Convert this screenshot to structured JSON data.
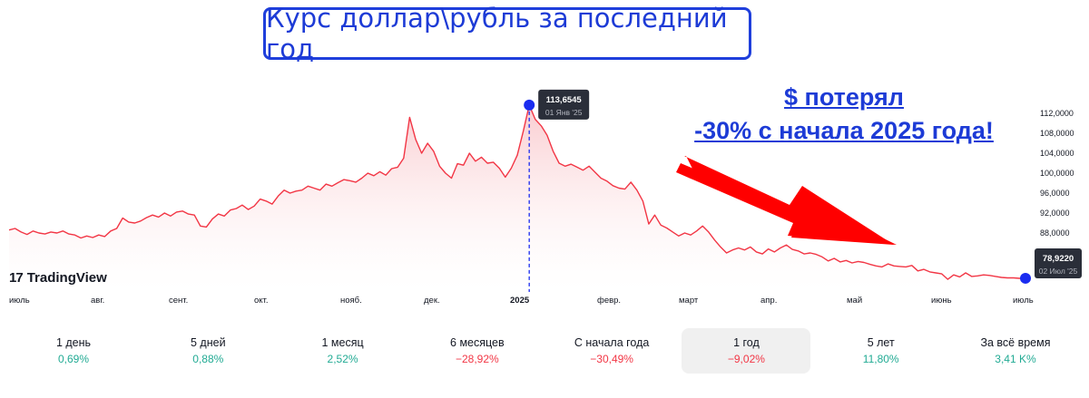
{
  "title": "Курс доллар\\рубль за последний год",
  "callout": {
    "line1": "$ потерял",
    "line2": "-30% с начала 2025 года!"
  },
  "brand": {
    "mark": "17",
    "name": "TradingView"
  },
  "colors": {
    "line": "#f23645",
    "fill_top": "#f9c6ca",
    "marker": "#1a2cf0",
    "arrow": "#ff0000",
    "tooltip_bg": "#2a2e39"
  },
  "chart_data": {
    "type": "area",
    "y_axis": {
      "ticks": [
        "112,0000",
        "108,0000",
        "104,0000",
        "100,0000",
        "96,0000",
        "92,0000",
        "88,0000"
      ],
      "ylim": [
        78,
        114
      ]
    },
    "x_axis": {
      "ticks": [
        "июль",
        "авг.",
        "сент.",
        "окт.",
        "нояб.",
        "дек.",
        "2025",
        "февр.",
        "март",
        "апр.",
        "май",
        "июнь",
        "июль"
      ]
    },
    "series": [
      {
        "points": [
          [
            0,
            88.6
          ],
          [
            2,
            88.9
          ],
          [
            4,
            88.2
          ],
          [
            6,
            87.7
          ],
          [
            8,
            88.4
          ],
          [
            10,
            88.0
          ],
          [
            12,
            87.8
          ],
          [
            14,
            88.2
          ],
          [
            16,
            88.0
          ],
          [
            18,
            88.4
          ],
          [
            20,
            87.8
          ],
          [
            22,
            87.6
          ],
          [
            24,
            87.0
          ],
          [
            26,
            87.4
          ],
          [
            28,
            87.1
          ],
          [
            30,
            87.6
          ],
          [
            32,
            87.3
          ],
          [
            34,
            88.4
          ],
          [
            36,
            88.9
          ],
          [
            38,
            91.0
          ],
          [
            40,
            90.2
          ],
          [
            42,
            90.0
          ],
          [
            44,
            90.4
          ],
          [
            46,
            91.1
          ],
          [
            48,
            91.6
          ],
          [
            50,
            91.2
          ],
          [
            52,
            92.0
          ],
          [
            54,
            91.4
          ],
          [
            56,
            92.2
          ],
          [
            58,
            92.4
          ],
          [
            60,
            91.8
          ],
          [
            62,
            91.6
          ],
          [
            64,
            89.4
          ],
          [
            66,
            89.2
          ],
          [
            68,
            90.8
          ],
          [
            70,
            91.8
          ],
          [
            72,
            91.4
          ],
          [
            74,
            92.6
          ],
          [
            76,
            92.9
          ],
          [
            78,
            93.6
          ],
          [
            80,
            92.7
          ],
          [
            82,
            93.4
          ],
          [
            84,
            94.8
          ],
          [
            86,
            94.4
          ],
          [
            88,
            93.8
          ],
          [
            90,
            95.4
          ],
          [
            92,
            96.6
          ],
          [
            94,
            96.0
          ],
          [
            96,
            96.4
          ],
          [
            98,
            96.6
          ],
          [
            100,
            97.4
          ],
          [
            102,
            97.0
          ],
          [
            104,
            96.6
          ],
          [
            106,
            97.8
          ],
          [
            108,
            97.4
          ],
          [
            110,
            98.1
          ],
          [
            112,
            98.7
          ],
          [
            114,
            98.5
          ],
          [
            116,
            98.2
          ],
          [
            118,
            99.0
          ],
          [
            120,
            100.0
          ],
          [
            122,
            99.5
          ],
          [
            124,
            100.3
          ],
          [
            126,
            99.6
          ],
          [
            128,
            100.9
          ],
          [
            130,
            101.2
          ],
          [
            132,
            103.0
          ],
          [
            134,
            111.2
          ],
          [
            136,
            106.8
          ],
          [
            138,
            104.0
          ],
          [
            140,
            106.0
          ],
          [
            142,
            104.4
          ],
          [
            144,
            101.4
          ],
          [
            146,
            100.0
          ],
          [
            148,
            99.0
          ],
          [
            150,
            101.9
          ],
          [
            152,
            101.6
          ],
          [
            154,
            104.0
          ],
          [
            156,
            102.4
          ],
          [
            158,
            103.2
          ],
          [
            160,
            102.0
          ],
          [
            162,
            102.2
          ],
          [
            164,
            101.0
          ],
          [
            166,
            99.2
          ],
          [
            168,
            101.0
          ],
          [
            170,
            103.6
          ],
          [
            172,
            108.4
          ],
          [
            174,
            113.65
          ],
          [
            176,
            110.8
          ],
          [
            178,
            109.5
          ],
          [
            180,
            107.6
          ],
          [
            182,
            104.4
          ],
          [
            184,
            102.0
          ],
          [
            186,
            101.4
          ],
          [
            188,
            101.8
          ],
          [
            190,
            101.2
          ],
          [
            192,
            100.6
          ],
          [
            194,
            101.4
          ],
          [
            196,
            100.2
          ],
          [
            198,
            99.0
          ],
          [
            200,
            98.4
          ],
          [
            202,
            97.5
          ],
          [
            204,
            97.0
          ],
          [
            206,
            96.8
          ],
          [
            208,
            98.2
          ],
          [
            210,
            96.6
          ],
          [
            212,
            94.4
          ],
          [
            214,
            89.8
          ],
          [
            216,
            91.6
          ],
          [
            218,
            89.6
          ],
          [
            220,
            89.0
          ],
          [
            222,
            88.2
          ],
          [
            224,
            87.4
          ],
          [
            226,
            88.0
          ],
          [
            228,
            87.6
          ],
          [
            230,
            88.4
          ],
          [
            232,
            89.4
          ],
          [
            234,
            88.2
          ],
          [
            236,
            86.6
          ],
          [
            238,
            85.2
          ],
          [
            240,
            84.0
          ],
          [
            242,
            84.6
          ],
          [
            244,
            85.0
          ],
          [
            246,
            84.6
          ],
          [
            248,
            85.2
          ],
          [
            250,
            84.2
          ],
          [
            252,
            83.8
          ],
          [
            254,
            84.8
          ],
          [
            256,
            84.2
          ],
          [
            258,
            85.0
          ],
          [
            260,
            85.6
          ],
          [
            262,
            84.7
          ],
          [
            264,
            84.4
          ],
          [
            266,
            83.8
          ],
          [
            268,
            84.0
          ],
          [
            270,
            83.7
          ],
          [
            272,
            83.2
          ],
          [
            274,
            82.4
          ],
          [
            276,
            82.9
          ],
          [
            278,
            82.2
          ],
          [
            280,
            82.5
          ],
          [
            282,
            82.0
          ],
          [
            284,
            82.3
          ],
          [
            286,
            82.1
          ],
          [
            288,
            81.7
          ],
          [
            290,
            81.4
          ],
          [
            292,
            81.2
          ],
          [
            294,
            81.8
          ],
          [
            296,
            81.4
          ],
          [
            298,
            81.3
          ],
          [
            300,
            81.2
          ],
          [
            302,
            81.5
          ],
          [
            304,
            80.4
          ],
          [
            306,
            80.7
          ],
          [
            308,
            80.2
          ],
          [
            310,
            80.0
          ],
          [
            312,
            79.8
          ],
          [
            314,
            78.7
          ],
          [
            316,
            79.6
          ],
          [
            318,
            79.2
          ],
          [
            320,
            80.0
          ],
          [
            322,
            79.3
          ],
          [
            324,
            79.4
          ],
          [
            326,
            79.6
          ],
          [
            328,
            79.5
          ],
          [
            330,
            79.3
          ],
          [
            332,
            79.1
          ],
          [
            334,
            79.0
          ],
          [
            336,
            79.0
          ],
          [
            338,
            78.9
          ],
          [
            340,
            78.92
          ]
        ]
      }
    ],
    "annotations": [
      {
        "label": "113,6545",
        "date": "01 Янв '25",
        "value": 113.6545
      },
      {
        "label": "78,9220",
        "date": "02 Июл '25",
        "value": 78.922
      }
    ]
  },
  "periods": [
    {
      "label": "1 день",
      "change": "0,69%",
      "sign": "pos"
    },
    {
      "label": "5 дней",
      "change": "0,88%",
      "sign": "pos"
    },
    {
      "label": "1 месяц",
      "change": "2,52%",
      "sign": "pos"
    },
    {
      "label": "6 месяцев",
      "change": "−28,92%",
      "sign": "neg"
    },
    {
      "label": "С начала года",
      "change": "−30,49%",
      "sign": "neg"
    },
    {
      "label": "1 год",
      "change": "−9,02%",
      "sign": "neg",
      "active": true
    },
    {
      "label": "5 лет",
      "change": "11,80%",
      "sign": "pos"
    },
    {
      "label": "За всё время",
      "change": "3,41 K%",
      "sign": "pos"
    }
  ]
}
